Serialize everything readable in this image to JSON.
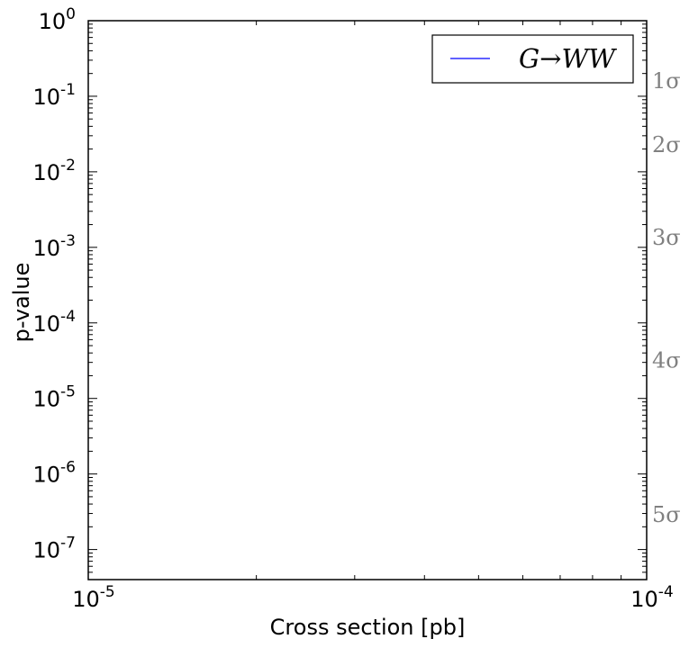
{
  "chart_data": {
    "type": "line",
    "xlabel": "Cross section [pb]",
    "ylabel": "p-value",
    "xscale": "log",
    "yscale": "log",
    "xlim": [
      1e-05,
      0.0001
    ],
    "ylim": [
      4e-08,
      1
    ],
    "x_ticks": [
      {
        "value": 1e-05,
        "base": "10",
        "exp": "-5"
      },
      {
        "value": 0.0001,
        "base": "10",
        "exp": "-4"
      }
    ],
    "y_ticks": [
      {
        "value": 1,
        "base": "10",
        "exp": "0"
      },
      {
        "value": 0.1,
        "base": "10",
        "exp": "-1"
      },
      {
        "value": 0.01,
        "base": "10",
        "exp": "-2"
      },
      {
        "value": 0.001,
        "base": "10",
        "exp": "-3"
      },
      {
        "value": 0.0001,
        "base": "10",
        "exp": "-4"
      },
      {
        "value": 1e-05,
        "base": "10",
        "exp": "-5"
      },
      {
        "value": 1e-06,
        "base": "10",
        "exp": "-6"
      },
      {
        "value": 1e-07,
        "base": "10",
        "exp": "-7"
      }
    ],
    "sigma_lines": [
      {
        "label": "1σ",
        "p_value": 0.1587
      },
      {
        "label": "2σ",
        "p_value": 0.02275
      },
      {
        "label": "3σ",
        "p_value": 0.00135
      },
      {
        "label": "4σ",
        "p_value": 3.17e-05
      },
      {
        "label": "5σ",
        "p_value": 2.87e-07
      }
    ],
    "series": [
      {
        "name": "G→WW",
        "color": "#0000ff",
        "x": [],
        "y": []
      }
    ],
    "legend": {
      "position": "top-right"
    },
    "grid": false
  }
}
